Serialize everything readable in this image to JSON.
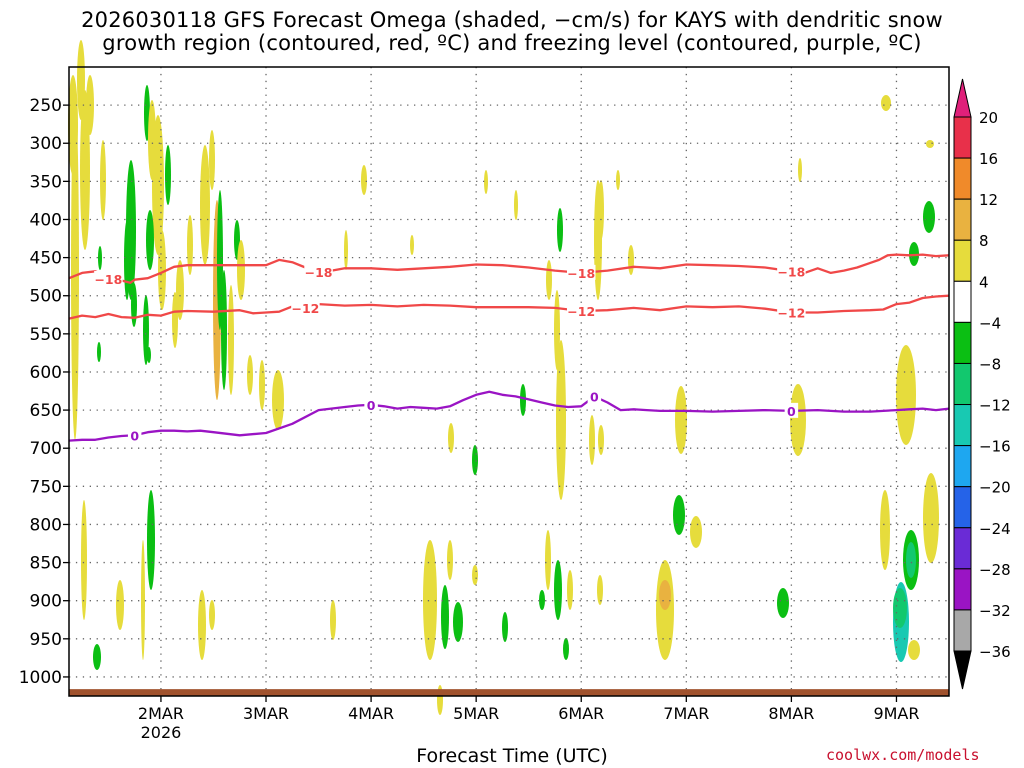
{
  "chart_data": {
    "type": "heatmap",
    "title_line1": "2026030118 GFS Forecast Omega (shaded, −cm/s) for KAYS with dendritic snow",
    "title_line2": "growth region (contoured, red, ºC) and freezing level (contoured, purple, ºC)",
    "xlabel": "Forecast Time (UTC)",
    "credit": "coolwx.com/models",
    "x_domain_hours": [
      -15,
      186
    ],
    "y_domain_hpa": [
      200,
      1025
    ],
    "x_ticks": [
      {
        "label": "2MAR",
        "hour": 6,
        "sub": "2026"
      },
      {
        "label": "3MAR",
        "hour": 30,
        "sub": ""
      },
      {
        "label": "4MAR",
        "hour": 54,
        "sub": ""
      },
      {
        "label": "5MAR",
        "hour": 78,
        "sub": ""
      },
      {
        "label": "6MAR",
        "hour": 102,
        "sub": ""
      },
      {
        "label": "7MAR",
        "hour": 126,
        "sub": ""
      },
      {
        "label": "8MAR",
        "hour": 150,
        "sub": ""
      },
      {
        "label": "9MAR",
        "hour": 174,
        "sub": ""
      }
    ],
    "y_ticks": [
      250,
      300,
      350,
      400,
      450,
      500,
      550,
      600,
      650,
      700,
      750,
      800,
      850,
      900,
      950,
      1000
    ],
    "colorbar": {
      "labels": [
        "20",
        "16",
        "12",
        "8",
        "4",
        "−4",
        "−8",
        "−12",
        "−16",
        "−20",
        "−24",
        "−28",
        "−32",
        "−36"
      ],
      "colors": [
        "#e8304a",
        "#f08a2a",
        "#e9b240",
        "#e6dc3c",
        "#ffffff",
        "#0bbf13",
        "#12c86e",
        "#18c9b2",
        "#1ea7f0",
        "#2563e8",
        "#6a2bd6",
        "#9a14c4",
        "#a8a8a8"
      ],
      "top_arrow_color": "#e0207a",
      "bottom_arrow_color": "#000000"
    },
    "series": [
      {
        "name": "−18 ºC isotherm",
        "color": "#f04848",
        "label": "−18",
        "label_hours": [
          -6,
          42,
          102,
          150
        ],
        "x": [
          -15,
          -12,
          -9,
          -7,
          -6,
          -5,
          -3,
          -1,
          0,
          3,
          6,
          9,
          12,
          18,
          24,
          30,
          33,
          36,
          39,
          42,
          45,
          48,
          54,
          60,
          66,
          72,
          78,
          84,
          90,
          96,
          102,
          108,
          114,
          120,
          126,
          132,
          138,
          144,
          150,
          153,
          156,
          159,
          162,
          165,
          168,
          170,
          172,
          174,
          177,
          180,
          183,
          186
        ],
        "y": [
          477,
          470,
          468,
          473,
          478,
          472,
          480,
          483,
          479,
          477,
          470,
          462,
          460,
          460,
          460,
          460,
          453,
          456,
          463,
          469,
          467,
          464,
          464,
          466,
          464,
          462,
          459,
          460,
          463,
          467,
          470,
          467,
          462,
          464,
          459,
          460,
          461,
          463,
          468,
          470,
          464,
          470,
          467,
          463,
          457,
          453,
          447,
          446,
          447,
          446,
          448,
          447
        ]
      },
      {
        "name": "−12 ºC isotherm",
        "color": "#f04848",
        "label": "−12",
        "label_hours": [
          39,
          102,
          150
        ],
        "x": [
          -15,
          -12,
          -9,
          -6,
          -3,
          0,
          3,
          6,
          9,
          12,
          18,
          24,
          27,
          30,
          33,
          36,
          39,
          42,
          48,
          54,
          60,
          66,
          72,
          78,
          84,
          90,
          96,
          102,
          108,
          114,
          120,
          126,
          132,
          138,
          144,
          150,
          156,
          162,
          168,
          171,
          174,
          177,
          180,
          183,
          186
        ],
        "y": [
          530,
          526,
          528,
          524,
          528,
          529,
          525,
          526,
          521,
          520,
          521,
          519,
          523,
          522,
          521,
          514,
          516,
          511,
          513,
          512,
          514,
          512,
          513,
          515,
          515,
          515,
          516,
          520,
          519,
          516,
          519,
          514,
          515,
          514,
          517,
          522,
          522,
          520,
          519,
          518,
          511,
          509,
          503,
          501,
          500
        ]
      },
      {
        "name": "0 ºC freezing level",
        "color": "#9a14c4",
        "label": "0",
        "label_hours": [
          0,
          54,
          105,
          150
        ],
        "x": [
          -15,
          -12,
          -9,
          -6,
          -3,
          0,
          3,
          6,
          9,
          12,
          15,
          18,
          24,
          30,
          36,
          42,
          48,
          51,
          54,
          57,
          60,
          63,
          66,
          69,
          72,
          75,
          78,
          81,
          84,
          87,
          90,
          93,
          96,
          99,
          102,
          105,
          108,
          111,
          114,
          117,
          120,
          126,
          132,
          138,
          144,
          150,
          156,
          162,
          168,
          174,
          177,
          180,
          183,
          186
        ],
        "y": [
          690,
          689,
          689,
          686,
          684,
          683,
          679,
          677,
          677,
          678,
          677,
          679,
          683,
          680,
          668,
          650,
          646,
          644,
          643,
          645,
          648,
          646,
          647,
          648,
          645,
          637,
          630,
          626,
          630,
          632,
          636,
          640,
          644,
          646,
          645,
          632,
          640,
          650,
          649,
          650,
          651,
          651,
          652,
          651,
          650,
          651,
          650,
          652,
          652,
          650,
          649,
          648,
          650,
          648
        ]
      }
    ],
    "ground_level_hpa": 1016
  }
}
